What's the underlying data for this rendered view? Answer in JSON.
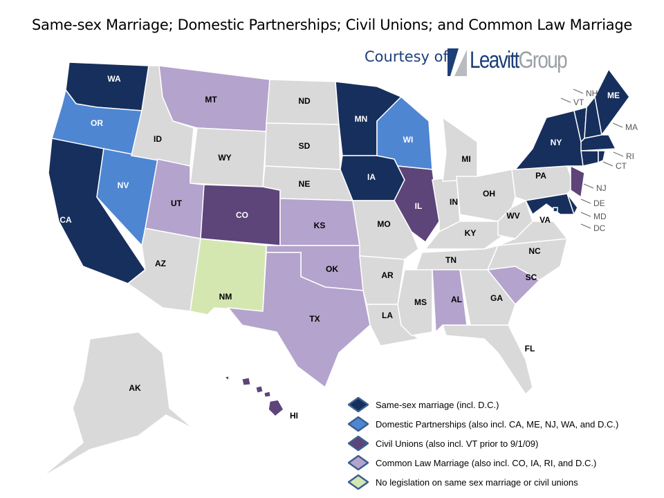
{
  "title": "Same-sex Marriage; Domestic Partnerships; Civil Unions; and Common Law Marriage",
  "courtesy": "Courtesy of",
  "logo": {
    "word1": "Leavitt",
    "word2": "Group"
  },
  "colors": {
    "same_sex": "#172f5c",
    "domestic": "#4e86d2",
    "civil": "#5d4479",
    "common_law": "#b4a3cd",
    "no_legislation": "#d5e7b1",
    "other": "#d9d9d9",
    "border": "#ffffff"
  },
  "legend": [
    {
      "key": "same_sex",
      "label": "Same-sex marriage  (incl. D.C.)"
    },
    {
      "key": "domestic",
      "label": "Domestic Partnerships (also incl. CA, ME, NJ, WA, and D.C.)"
    },
    {
      "key": "civil",
      "label": "Civil Unions (also incl. VT prior to 9/1/09)"
    },
    {
      "key": "common_law",
      "label": "Common Law Marriage (also incl. CO, IA, RI, and D.C.)"
    },
    {
      "key": "no_legislation",
      "label": "No legislation on same sex marriage or civil unions"
    }
  ],
  "states": [
    {
      "code": "WA",
      "status": "same_sex"
    },
    {
      "code": "OR",
      "status": "domestic"
    },
    {
      "code": "CA",
      "status": "same_sex"
    },
    {
      "code": "NV",
      "status": "domestic"
    },
    {
      "code": "ID",
      "status": "other"
    },
    {
      "code": "MT",
      "status": "common_law"
    },
    {
      "code": "WY",
      "status": "other"
    },
    {
      "code": "UT",
      "status": "common_law"
    },
    {
      "code": "CO",
      "status": "civil"
    },
    {
      "code": "AZ",
      "status": "other"
    },
    {
      "code": "NM",
      "status": "no_legislation"
    },
    {
      "code": "ND",
      "status": "other"
    },
    {
      "code": "SD",
      "status": "other"
    },
    {
      "code": "NE",
      "status": "other"
    },
    {
      "code": "KS",
      "status": "common_law"
    },
    {
      "code": "OK",
      "status": "common_law"
    },
    {
      "code": "TX",
      "status": "common_law"
    },
    {
      "code": "MN",
      "status": "same_sex"
    },
    {
      "code": "IA",
      "status": "same_sex"
    },
    {
      "code": "MO",
      "status": "other"
    },
    {
      "code": "AR",
      "status": "other"
    },
    {
      "code": "LA",
      "status": "other"
    },
    {
      "code": "WI",
      "status": "domestic"
    },
    {
      "code": "IL",
      "status": "civil"
    },
    {
      "code": "IN",
      "status": "other"
    },
    {
      "code": "MI",
      "status": "other"
    },
    {
      "code": "OH",
      "status": "other"
    },
    {
      "code": "KY",
      "status": "other"
    },
    {
      "code": "TN",
      "status": "other"
    },
    {
      "code": "MS",
      "status": "other"
    },
    {
      "code": "AL",
      "status": "common_law"
    },
    {
      "code": "GA",
      "status": "other"
    },
    {
      "code": "FL",
      "status": "other"
    },
    {
      "code": "SC",
      "status": "common_law"
    },
    {
      "code": "NC",
      "status": "other"
    },
    {
      "code": "VA",
      "status": "other"
    },
    {
      "code": "WV",
      "status": "other"
    },
    {
      "code": "PA",
      "status": "other"
    },
    {
      "code": "NY",
      "status": "same_sex"
    },
    {
      "code": "NJ",
      "status": "civil"
    },
    {
      "code": "MD",
      "status": "same_sex"
    },
    {
      "code": "DE",
      "status": "same_sex"
    },
    {
      "code": "DC",
      "status": "same_sex"
    },
    {
      "code": "VT",
      "status": "same_sex"
    },
    {
      "code": "NH",
      "status": "same_sex"
    },
    {
      "code": "ME",
      "status": "same_sex"
    },
    {
      "code": "MA",
      "status": "same_sex"
    },
    {
      "code": "CT",
      "status": "same_sex"
    },
    {
      "code": "RI",
      "status": "same_sex"
    },
    {
      "code": "AK",
      "status": "other"
    },
    {
      "code": "HI",
      "status": "civil"
    }
  ]
}
